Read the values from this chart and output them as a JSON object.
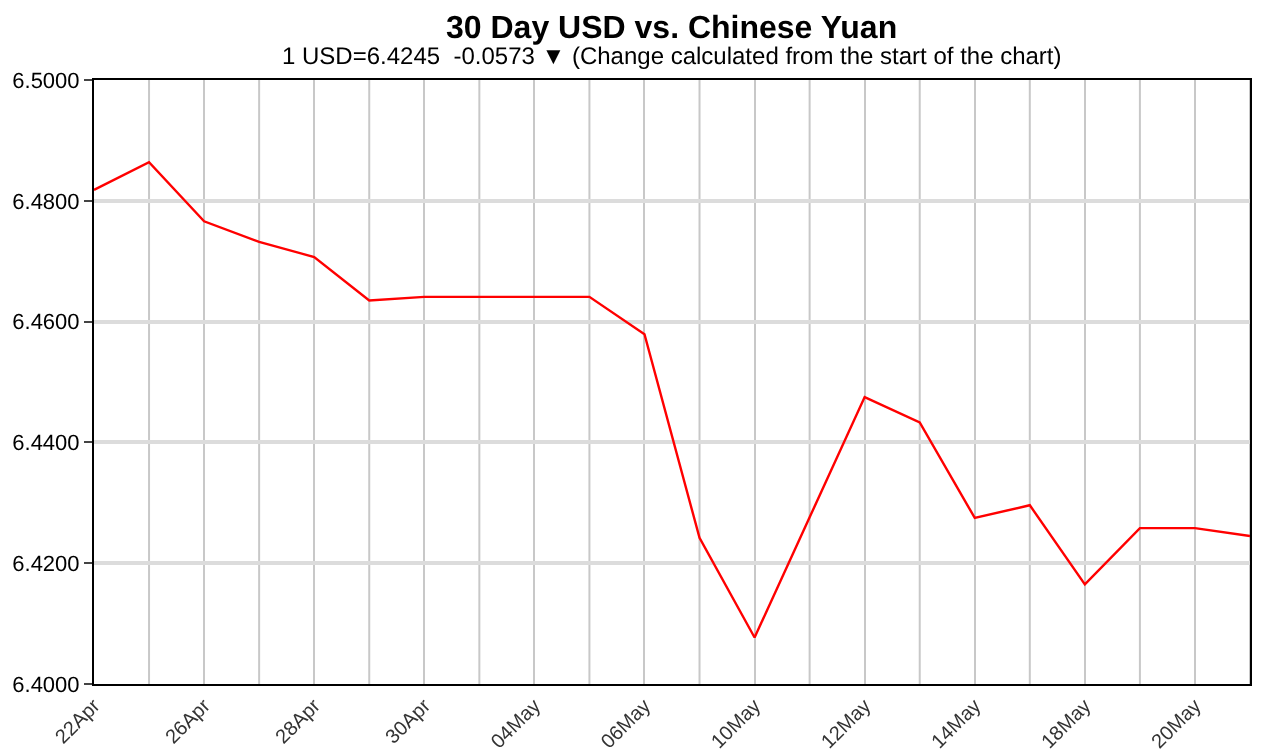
{
  "chart_data": {
    "type": "line",
    "title": "30 Day USD vs. Chinese Yuan",
    "subtitle": "1 USD=6.4245  -0.0573 ▼ (Change calculated from the start of the chart)",
    "categories": [
      "22Apr",
      null,
      "26Apr",
      null,
      "28Apr",
      null,
      "30Apr",
      null,
      "04May",
      null,
      "06May",
      null,
      "10May",
      null,
      "12May",
      null,
      "14May",
      null,
      "18May",
      null,
      "20May",
      null
    ],
    "series": [
      {
        "color": "#ff0000",
        "values": [
          6.4818,
          6.4864,
          6.4766,
          6.4732,
          6.4707,
          6.4635,
          6.4641,
          6.4641,
          6.4641,
          6.4641,
          6.4579,
          6.4242,
          6.4077,
          6.4276,
          6.4475,
          6.4433,
          6.4275,
          6.4296,
          6.4165,
          6.4258,
          6.4258,
          6.4245
        ]
      }
    ],
    "ylim": [
      6.4,
      6.5
    ],
    "yticks": [
      {
        "value": 6.4,
        "label": "6.4000"
      },
      {
        "value": 6.42,
        "label": "6.4200"
      },
      {
        "value": 6.44,
        "label": "6.4400"
      },
      {
        "value": 6.46,
        "label": "6.4600"
      },
      {
        "value": 6.48,
        "label": "6.4800"
      },
      {
        "value": 6.5,
        "label": "6.5000"
      }
    ],
    "grid": true,
    "marker": "none",
    "line_style": "solid"
  }
}
